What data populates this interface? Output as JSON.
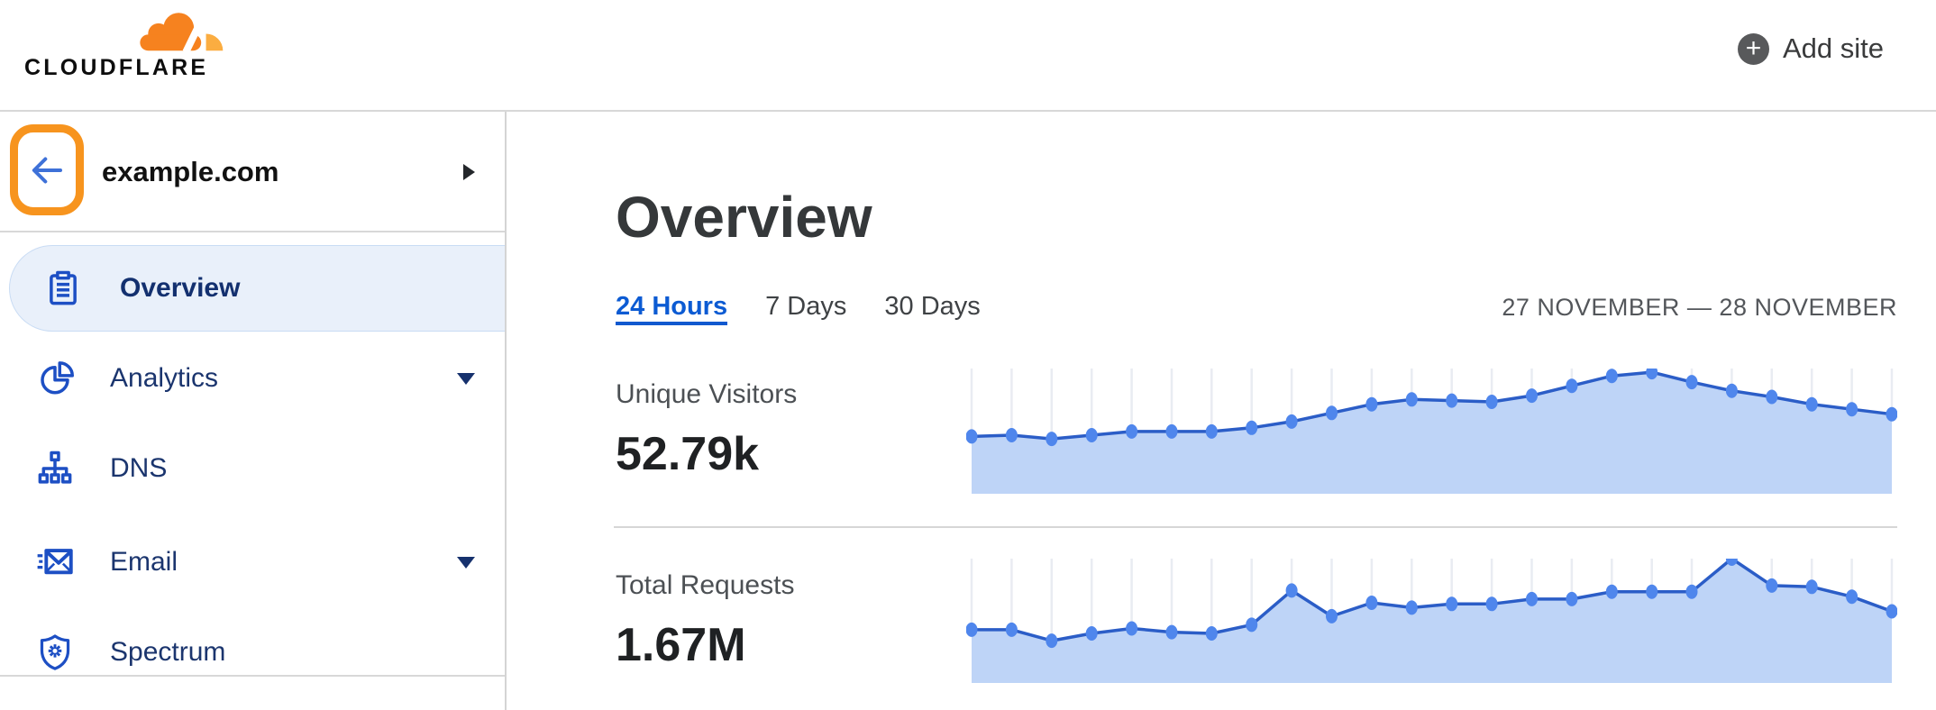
{
  "header": {
    "logo_text": "CLOUDFLARE",
    "add_site": {
      "label": "Add site",
      "plus_icon": "+"
    }
  },
  "sidebar": {
    "site_name": "example.com",
    "items": [
      {
        "label": "Overview",
        "icon": "clipboard-icon",
        "selected": true,
        "expandable": false
      },
      {
        "label": "Analytics",
        "icon": "pie-chart-icon",
        "selected": false,
        "expandable": true
      },
      {
        "label": "DNS",
        "icon": "sitemap-icon",
        "selected": false,
        "expandable": false
      },
      {
        "label": "Email",
        "icon": "envelope-icon",
        "selected": false,
        "expandable": true
      },
      {
        "label": "Spectrum",
        "icon": "shield-icon",
        "selected": false,
        "expandable": false
      }
    ]
  },
  "main": {
    "title": "Overview",
    "tabs": [
      {
        "label": "24 Hours",
        "active": true
      },
      {
        "label": "7 Days",
        "active": false
      },
      {
        "label": "30 Days",
        "active": false
      }
    ],
    "date_range": "27 NOVEMBER — 28 NOVEMBER",
    "metrics": [
      {
        "label": "Unique Visitors",
        "value": "52.79k"
      },
      {
        "label": "Total Requests",
        "value": "1.67M"
      }
    ]
  },
  "colors": {
    "brand_orange": "#F6821F",
    "brand_orange_light": "#FBAD41",
    "annotation_orange": "#F7941E",
    "back_arrow_blue": "#3E71D8",
    "tab_active_blue": "#0C5BD3",
    "nav_text_blue": "#1B356E",
    "icon_blue": "#1D4FC4",
    "chart_line": "#2B5DC7",
    "chart_dot": "#4F86EC",
    "chart_fill": "#BED4F7",
    "chart_grid": "#E9ECF2",
    "divider": "#D8D8D8"
  },
  "chart_data": [
    {
      "type": "area",
      "title": "Unique Visitors",
      "total_shown": "52.79k",
      "period": "24 Hours (27 November — 28 November)",
      "num_points": 24,
      "values": [
        45,
        46,
        43,
        46,
        49,
        49,
        49,
        52,
        57,
        64,
        71,
        75,
        74,
        73,
        78,
        86,
        94,
        97,
        89,
        82,
        77,
        71,
        67,
        63
      ],
      "unit": "relative height percent (no numeric axes shown in UI)",
      "xlabel": "",
      "ylabel": "",
      "grid": "vertical gridline at each data point",
      "legend": "none"
    },
    {
      "type": "area",
      "title": "Total Requests",
      "total_shown": "1.67M",
      "period": "24 Hours (27 November — 28 November)",
      "num_points": 24,
      "values": [
        42,
        42,
        33,
        39,
        43,
        40,
        39,
        46,
        74,
        53,
        64,
        60,
        63,
        63,
        67,
        67,
        73,
        73,
        73,
        100,
        78,
        77,
        69,
        57
      ],
      "unit": "relative height percent (no numeric axes shown in UI)",
      "xlabel": "",
      "ylabel": "",
      "grid": "vertical gridline at each data point",
      "legend": "none"
    }
  ]
}
